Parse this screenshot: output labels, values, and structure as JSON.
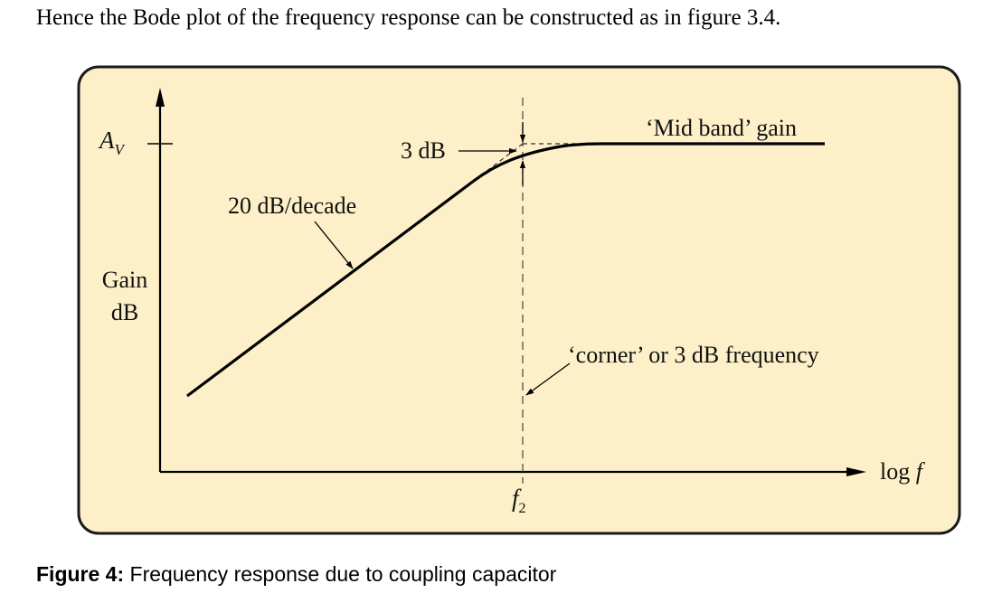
{
  "intro_text": "Hence the Bode plot of the frequency response can be constructed as in figure 3.4.",
  "figure": {
    "caption_label": "Figure 4:",
    "caption_text": "Frequency response due to coupling capacitor",
    "background_color": "#fdf0c9",
    "labels": {
      "y_axis_symbol": "A",
      "y_axis_subscript": "V",
      "y_axis_gain": "Gain",
      "y_axis_unit": "dB",
      "x_axis": "log",
      "x_axis_var": "f",
      "slope": "20 dB/decade",
      "three_db": "3 dB",
      "mid_band": "‘Mid band’ gain",
      "corner": "‘corner’ or 3 dB frequency",
      "corner_freq_symbol": "f",
      "corner_freq_subscript": "2"
    }
  }
}
